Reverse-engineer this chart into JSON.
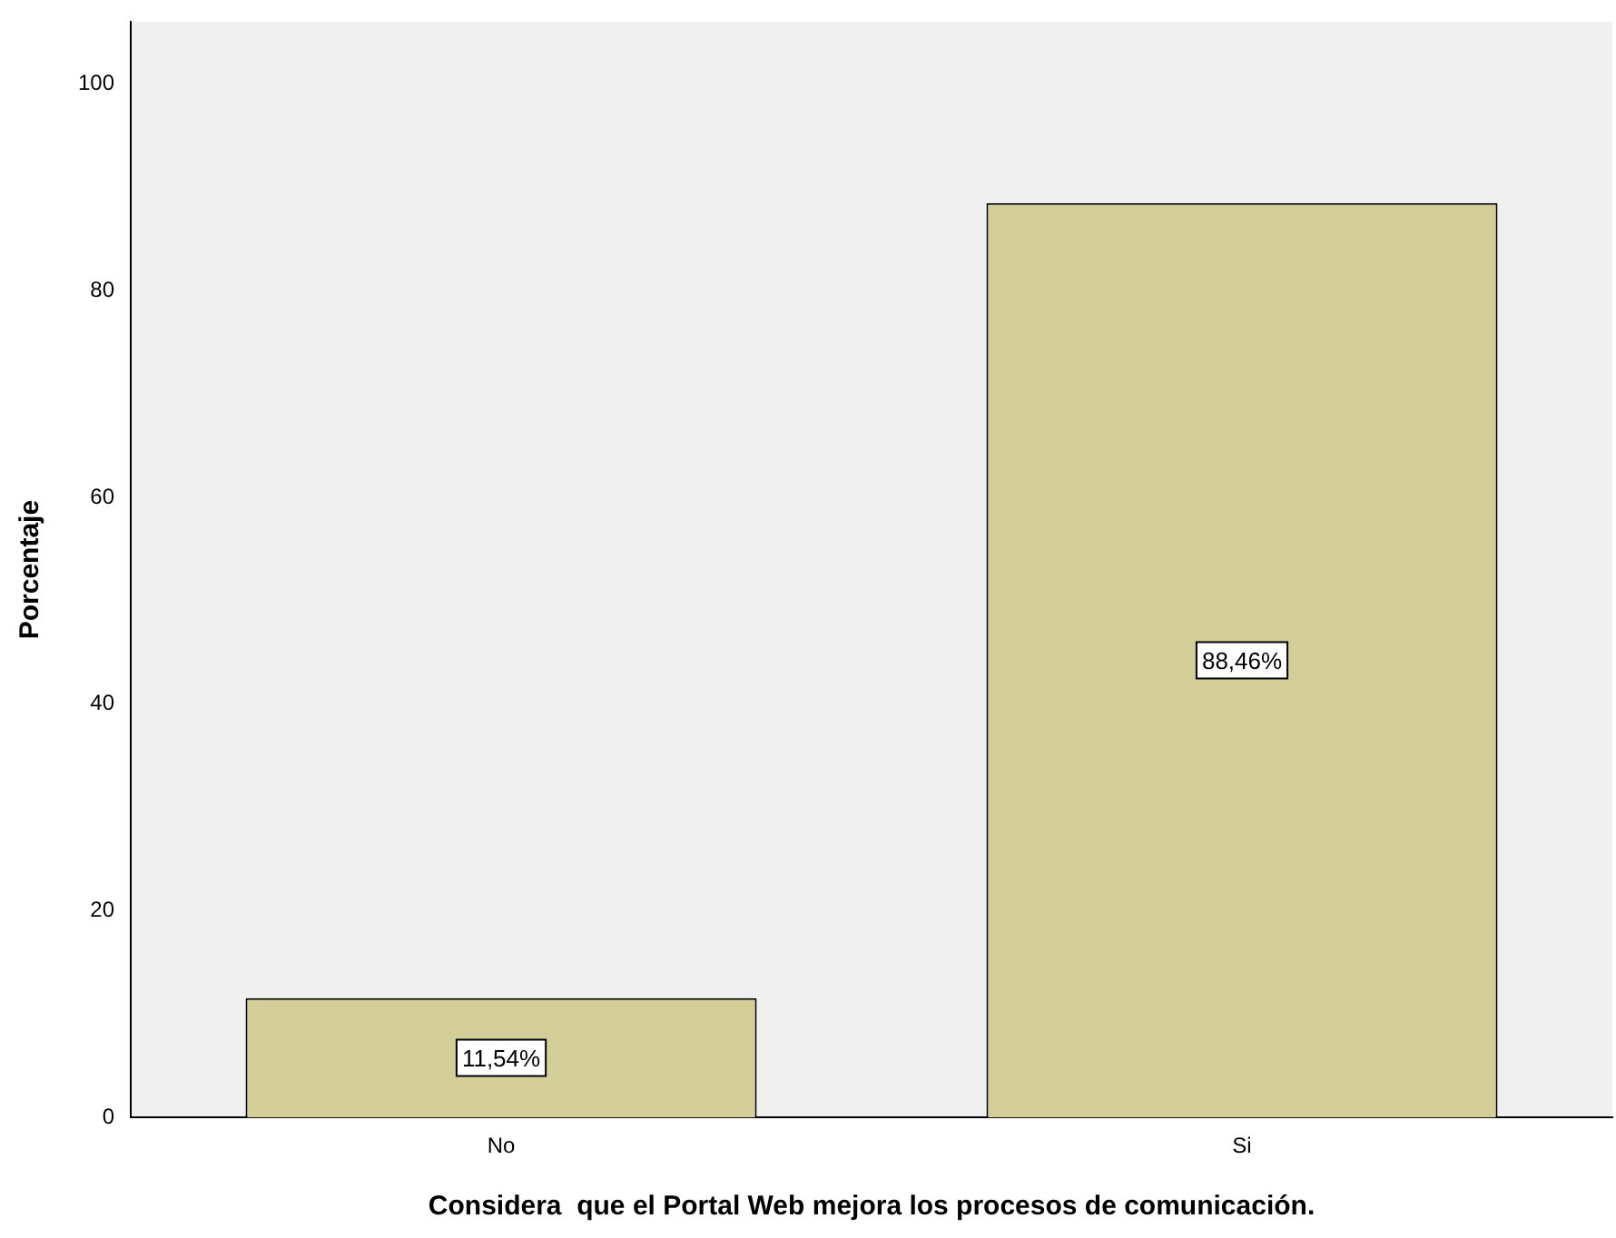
{
  "chart_data": {
    "type": "bar",
    "xlabel": "Considera  que el Portal Web mejora los procesos de comunicación.",
    "ylabel": "Porcentaje",
    "categories": [
      "No",
      "Si"
    ],
    "values": [
      11.54,
      88.46
    ],
    "value_labels": [
      "11,54%",
      "88,46%"
    ],
    "color": "#d3ce97",
    "ylim": [
      0,
      106
    ],
    "yticks": [
      0,
      20,
      40,
      60,
      80,
      100
    ],
    "grid": false,
    "legend": false
  }
}
